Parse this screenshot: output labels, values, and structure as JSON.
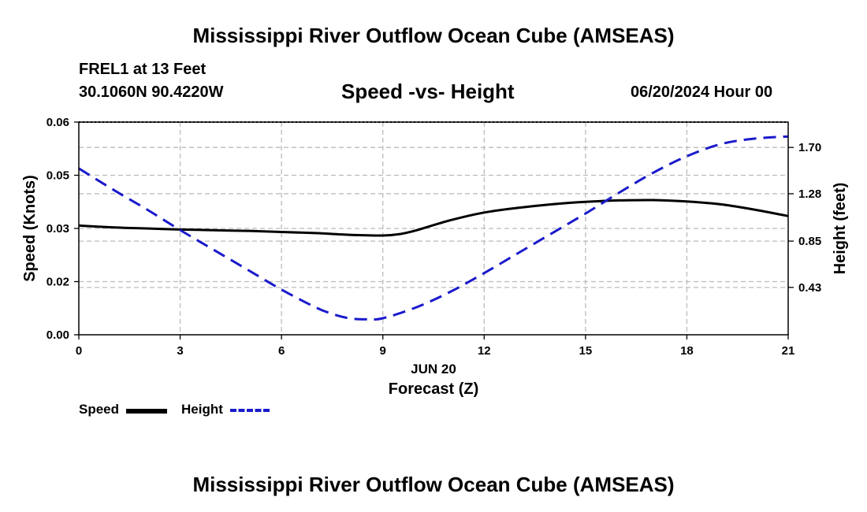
{
  "header": {
    "main_title": "Mississippi River Outflow Ocean Cube (AMSEAS)",
    "station_line": "FREL1 at 13 Feet",
    "coords_line": "30.1060N  90.4220W",
    "subtitle": "Speed -vs- Height",
    "date_line": "06/20/2024 Hour 00"
  },
  "footer": {
    "main_title": "Mississippi River Outflow Ocean Cube (AMSEAS)"
  },
  "legend": {
    "speed_label": "Speed",
    "height_label": "Height"
  },
  "colors": {
    "speed": "#000000",
    "height": "#1a1acc",
    "grid": "#bbbbbb"
  },
  "chart_data": {
    "type": "line",
    "title": "Speed -vs- Height",
    "xlabel": "Forecast (Z)",
    "xlabel_date": "JUN 20",
    "ylabel_left": "Speed (Knots)",
    "ylabel_right": "Height (feet)",
    "xlim": [
      0,
      21
    ],
    "ylim_left": [
      0,
      0.06
    ],
    "ylim_right": [
      0,
      1.93
    ],
    "x_ticks": [
      "0",
      "3",
      "6",
      "9",
      "12",
      "15",
      "18",
      "21"
    ],
    "x_tick_values": [
      0,
      3,
      6,
      9,
      12,
      15,
      18,
      21
    ],
    "y_left_ticks": [
      "0.00",
      "0.02",
      "0.03",
      "0.05",
      "0.06"
    ],
    "y_left_tick_values": [
      0,
      0.015,
      0.03,
      0.045,
      0.06
    ],
    "y_right_ticks": [
      "0.43",
      "0.85",
      "1.28",
      "1.70"
    ],
    "y_right_tick_values": [
      0.43,
      0.85,
      1.28,
      1.7
    ],
    "grid": true,
    "series": [
      {
        "name": "Speed",
        "axis": "left",
        "style": "solid",
        "x": [
          0,
          1,
          2,
          3,
          4,
          5,
          6,
          7,
          8,
          9,
          9.5,
          10,
          11,
          12,
          13,
          14,
          15,
          16,
          17,
          18,
          19,
          20,
          21
        ],
        "values": [
          0.0308,
          0.0303,
          0.03,
          0.0297,
          0.0295,
          0.0293,
          0.029,
          0.0287,
          0.0282,
          0.028,
          0.0284,
          0.0295,
          0.0323,
          0.0345,
          0.0358,
          0.0368,
          0.0375,
          0.0379,
          0.038,
          0.0376,
          0.0368,
          0.0353,
          0.0335
        ]
      },
      {
        "name": "Height",
        "axis": "right",
        "style": "dashed",
        "x": [
          0,
          1,
          2,
          3,
          4,
          5,
          6,
          7,
          7.5,
          8,
          8.5,
          9,
          10,
          11,
          12,
          13,
          14,
          15,
          16,
          17,
          18,
          19,
          20,
          21
        ],
        "values": [
          1.51,
          1.32,
          1.14,
          0.95,
          0.77,
          0.59,
          0.41,
          0.25,
          0.19,
          0.15,
          0.14,
          0.15,
          0.25,
          0.39,
          0.56,
          0.74,
          0.92,
          1.1,
          1.29,
          1.47,
          1.62,
          1.73,
          1.78,
          1.8
        ]
      }
    ]
  }
}
